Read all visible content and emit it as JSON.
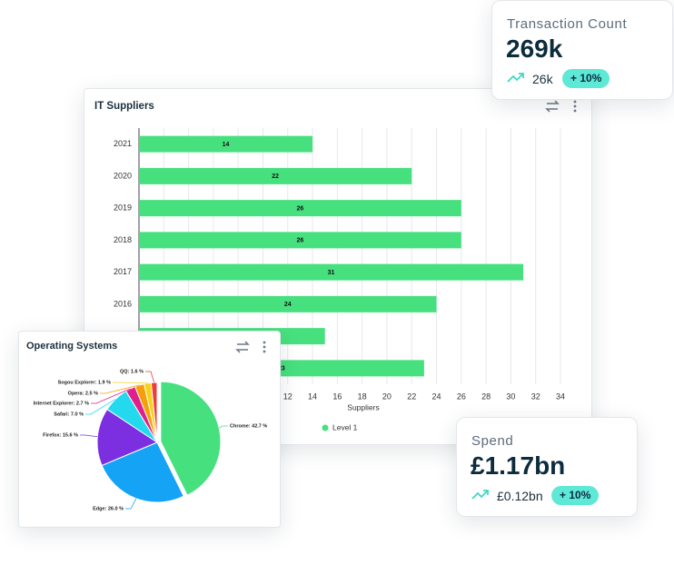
{
  "chart_data": [
    {
      "type": "bar",
      "orientation": "horizontal",
      "title": "IT Suppliers",
      "categories": [
        "2021",
        "2020",
        "2019",
        "2018",
        "2017",
        "2016",
        null,
        null
      ],
      "series": [
        {
          "name": "Level 1",
          "color": "#47e07f",
          "values": [
            14,
            22,
            26,
            26,
            31,
            24,
            15,
            23
          ]
        }
      ],
      "xlim": [
        0,
        34
      ],
      "xticks": [
        0,
        2,
        4,
        6,
        8,
        10,
        12,
        14,
        16,
        18,
        20,
        22,
        24,
        26,
        28,
        30,
        32,
        34
      ],
      "x_label": "Suppliers",
      "grid": true,
      "legend": "bottom"
    },
    {
      "type": "pie",
      "title": "Operating Systems",
      "values": [
        42.7,
        26.0,
        15.6,
        7.0,
        2.7,
        2.5,
        1.9,
        1.6
      ],
      "value_labels": [
        "Chrome: 42.7 %",
        "Edge: 26.0 %",
        "Firefox: 15.6 %",
        "Safari: 7.0 %",
        "Internet Explorer: 2.7 %",
        "Opera: 2.5 %",
        "Sogou Explorer: 1.9 %",
        "QQ: 1.6 %"
      ],
      "colors": [
        "#47e07f",
        "#14a3f5",
        "#7b2fe0",
        "#22d9ee",
        "#e0208a",
        "#f5a00b",
        "#f7d21c",
        "#ee3b3b"
      ]
    }
  ],
  "cards": [
    {
      "title": "Transaction Count",
      "value": "269k",
      "change": "26k",
      "badge": "+ 10%"
    },
    {
      "title": "Spend",
      "value": "£1.17bn",
      "change": "£0.12bn",
      "badge": "+ 10%"
    }
  ]
}
